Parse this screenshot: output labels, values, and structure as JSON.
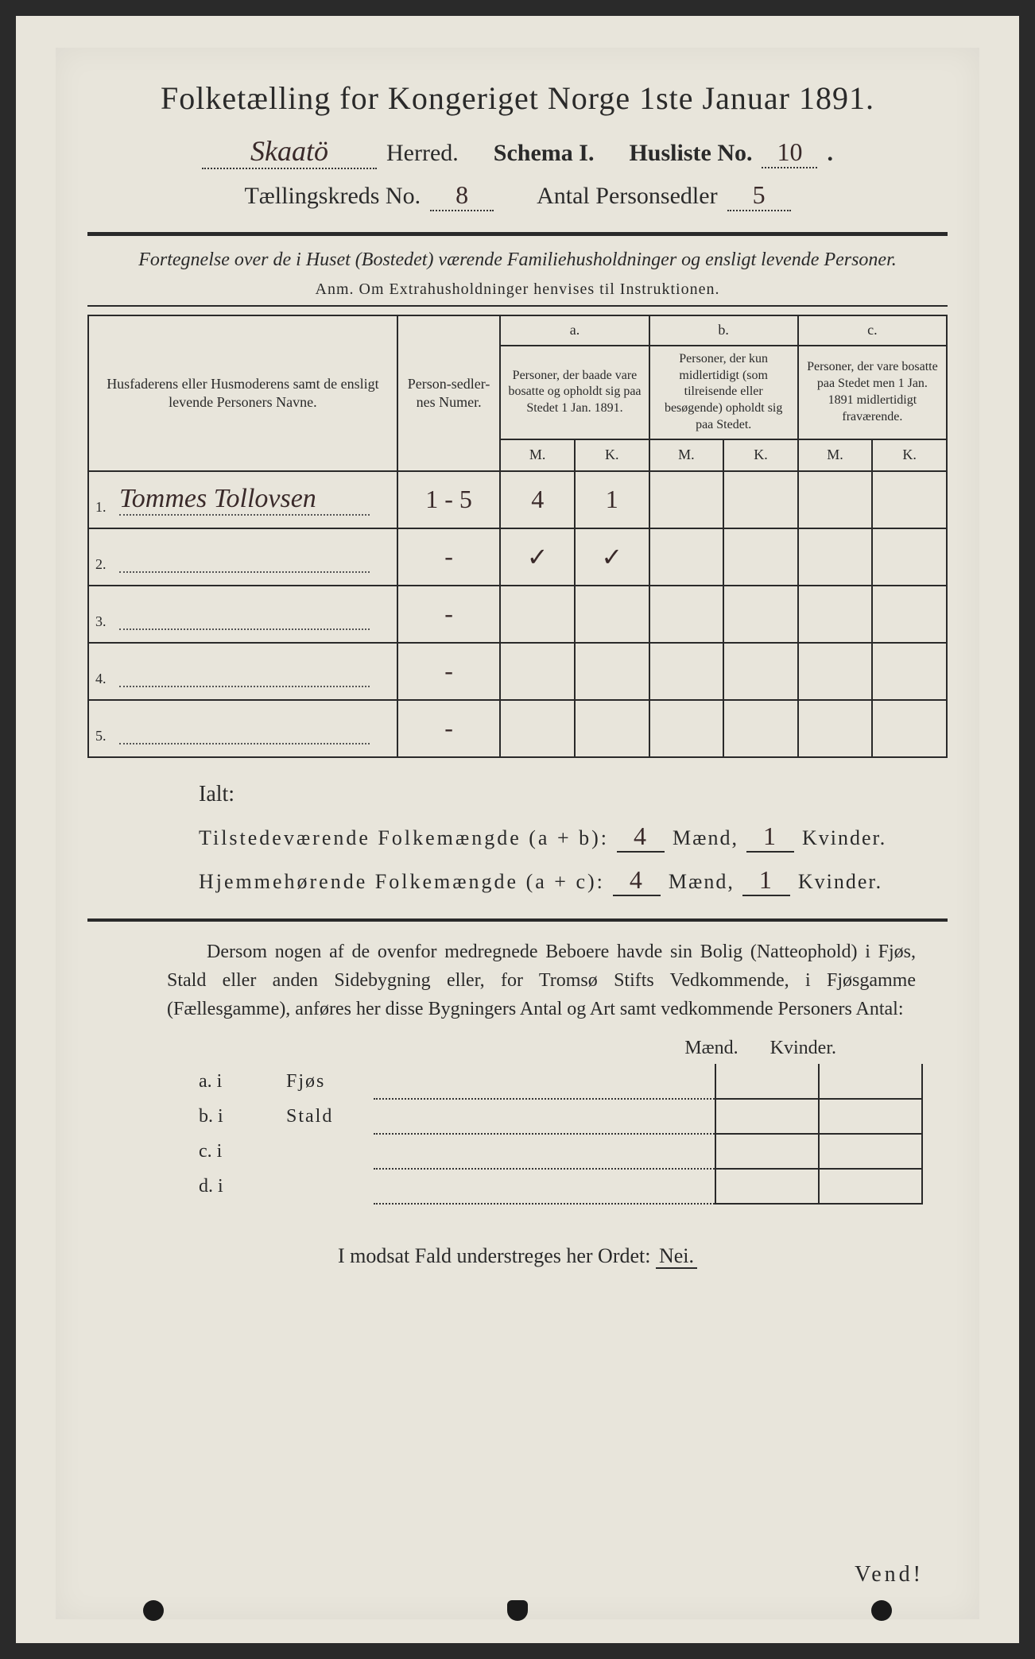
{
  "colors": {
    "paper": "#e8e5db",
    "ink": "#2a2a2a",
    "handwriting": "#3a2a2a",
    "background": "#2a2a2a"
  },
  "title": "Folketælling for Kongeriget Norge 1ste Januar 1891.",
  "header": {
    "herred_value": "Skaatö",
    "herred_label": "Herred.",
    "schema_label": "Schema I.",
    "husliste_label": "Husliste No.",
    "husliste_value": "10",
    "kreds_label": "Tællingskreds No.",
    "kreds_value": "8",
    "sedler_label": "Antal Personsedler",
    "sedler_value": "5"
  },
  "description": "Fortegnelse over de i Huset (Bostedet) værende Familiehusholdninger og ensligt levende Personer.",
  "anm": "Anm. Om Extrahusholdninger henvises til Instruktionen.",
  "table": {
    "head": {
      "name": "Husfaderens eller Husmoderens samt de ensligt levende Personers Navne.",
      "num": "Person-sedler-nes Numer.",
      "a_top": "a.",
      "a": "Personer, der baade vare bosatte og opholdt sig paa Stedet 1 Jan. 1891.",
      "b_top": "b.",
      "b": "Personer, der kun midlertidigt (som tilreisende eller besøgende) opholdt sig paa Stedet.",
      "c_top": "c.",
      "c": "Personer, der vare bosatte paa Stedet men 1 Jan. 1891 midlertidigt fraværende.",
      "m": "M.",
      "k": "K."
    },
    "rows": [
      {
        "n": "1.",
        "name": "Tommes Tollovsen",
        "num": "1 - 5",
        "am": "4",
        "ak": "1",
        "bm": "",
        "bk": "",
        "cm": "",
        "ck": ""
      },
      {
        "n": "2.",
        "name": "",
        "num": "-",
        "am": "✓",
        "ak": "✓",
        "bm": "",
        "bk": "",
        "cm": "",
        "ck": ""
      },
      {
        "n": "3.",
        "name": "",
        "num": "-",
        "am": "",
        "ak": "",
        "bm": "",
        "bk": "",
        "cm": "",
        "ck": ""
      },
      {
        "n": "4.",
        "name": "",
        "num": "-",
        "am": "",
        "ak": "",
        "bm": "",
        "bk": "",
        "cm": "",
        "ck": ""
      },
      {
        "n": "5.",
        "name": "",
        "num": "-",
        "am": "",
        "ak": "",
        "bm": "",
        "bk": "",
        "cm": "",
        "ck": ""
      }
    ]
  },
  "ialt": {
    "title": "Ialt:",
    "row1_label": "Tilstedeværende Folkemængde (a + b):",
    "row2_label": "Hjemmehørende Folkemængde (a + c):",
    "maend": "Mænd,",
    "kvinder": "Kvinder.",
    "r1m": "4",
    "r1k": "1",
    "r2m": "4",
    "r2k": "1"
  },
  "para_text": "Dersom nogen af de ovenfor medregnede Beboere havde sin Bolig (Natteophold) i Fjøs, Stald eller anden Sidebygning eller, for Tromsø Stifts Vedkommende, i Fjøsgamme (Fællesgamme), anføres her disse Bygningers Antal og Art samt vedkommende Personers Antal:",
  "outbuild": {
    "head_m": "Mænd.",
    "head_k": "Kvinder.",
    "rows": [
      {
        "l": "a.  i",
        "name": "Fjøs"
      },
      {
        "l": "b.  i",
        "name": "Stald"
      },
      {
        "l": "c.  i",
        "name": ""
      },
      {
        "l": "d.  i",
        "name": ""
      }
    ]
  },
  "nei_line": "I modsat Fald understreges her Ordet:",
  "nei": "Nei.",
  "vend": "Vend!"
}
